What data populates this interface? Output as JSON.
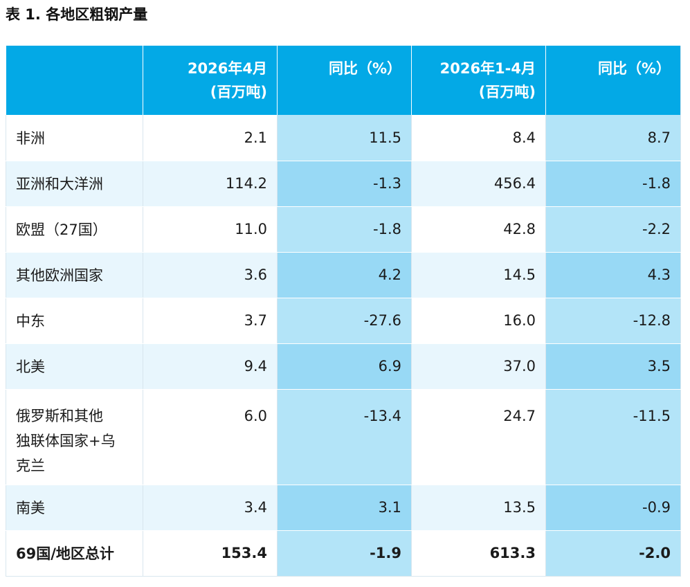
{
  "title": "表 1. 各地区粗钢产量",
  "headers": {
    "region": "",
    "month_line1": "2026年4月",
    "month_line2": "(百万吨)",
    "month_yoy": "同比（%）",
    "ytd_line1": "2026年1-4月",
    "ytd_line2": "(百万吨)",
    "ytd_yoy": "同比（%）"
  },
  "rows": [
    {
      "region": "非洲",
      "month": "2.1",
      "month_yoy": "11.5",
      "ytd": "8.4",
      "ytd_yoy": "8.7"
    },
    {
      "region": "亚洲和大洋洲",
      "month": "114.2",
      "month_yoy": "-1.3",
      "ytd": "456.4",
      "ytd_yoy": "-1.8"
    },
    {
      "region": "欧盟（27国）",
      "month": "11.0",
      "month_yoy": "-1.8",
      "ytd": "42.8",
      "ytd_yoy": "-2.2"
    },
    {
      "region": "其他欧洲国家",
      "month": "3.6",
      "month_yoy": "4.2",
      "ytd": "14.5",
      "ytd_yoy": "4.3"
    },
    {
      "region": "中东",
      "month": "3.7",
      "month_yoy": "-27.6",
      "ytd": "16.0",
      "ytd_yoy": "-12.8"
    },
    {
      "region": "北美",
      "month": "9.4",
      "month_yoy": "6.9",
      "ytd": "37.0",
      "ytd_yoy": "3.5"
    },
    {
      "region_line1": "俄罗斯和其他",
      "region_line2": "独联体国家+乌",
      "region_line3": "克兰",
      "month": "6.0",
      "month_yoy": "-13.4",
      "ytd": "24.7",
      "ytd_yoy": "-11.5"
    },
    {
      "region": "南美",
      "month": "3.4",
      "month_yoy": "3.1",
      "ytd": "13.5",
      "ytd_yoy": "-0.9"
    }
  ],
  "total": {
    "region": "69国/地区总计",
    "month": "153.4",
    "month_yoy": "-1.9",
    "ytd": "613.3",
    "ytd_yoy": "-2.0"
  },
  "colors": {
    "header_bg": "#03a9e6",
    "stripe": "#e8f6fd",
    "yoy_light": "#b3e4f8",
    "yoy_dark": "#98d9f5"
  }
}
